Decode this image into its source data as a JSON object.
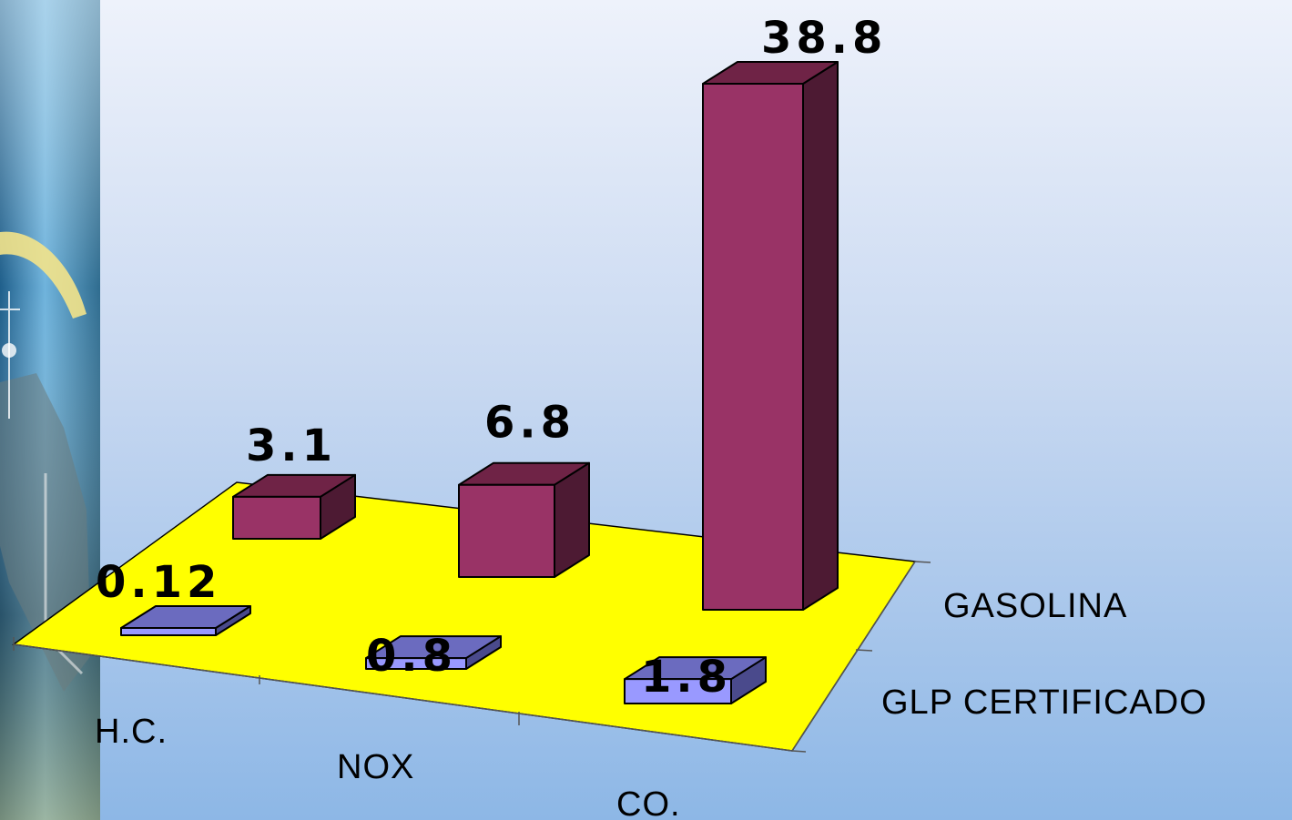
{
  "chart_data": {
    "type": "bar",
    "subtype": "3d-column",
    "categories": [
      "H.C.",
      "NOX",
      "CO."
    ],
    "series": [
      {
        "name": "GASOLINA",
        "values": [
          3.1,
          6.8,
          38.8
        ],
        "value_labels": [
          "3.1",
          "6.8",
          "38.8"
        ]
      },
      {
        "name": "GLP CERTIFICADO",
        "values": [
          0.12,
          0.8,
          1.8
        ],
        "value_labels": [
          "0.12",
          "0.8",
          "1.8"
        ]
      }
    ],
    "colors": {
      "GASOLINA": {
        "front": "#993366",
        "top": "#6f2346",
        "side": "#4d1a33"
      },
      "GLP CERTIFICADO": {
        "front": "#9999ff",
        "top": "#6b6bbf",
        "side": "#4a4a8c"
      },
      "floor": "#ffff00"
    },
    "legend": "right-depth-axis",
    "grid": false
  }
}
